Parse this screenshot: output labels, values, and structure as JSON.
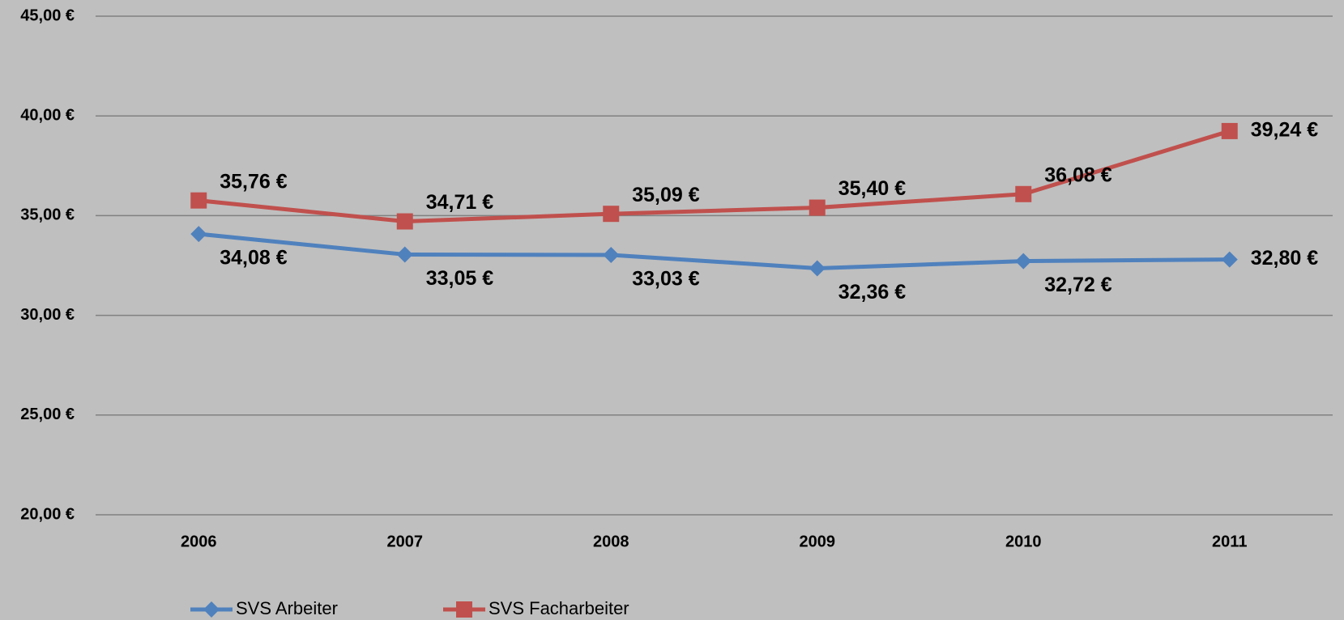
{
  "chart_data": {
    "type": "line",
    "categories": [
      "2006",
      "2007",
      "2008",
      "2009",
      "2010",
      "2011"
    ],
    "series": [
      {
        "name": "SVS Arbeiter",
        "color": "#4f81bd",
        "marker": "diamond",
        "values": [
          34.08,
          33.05,
          33.03,
          32.36,
          32.72,
          32.8
        ],
        "value_labels": [
          "34,08 €",
          "33,05 €",
          "33,03 €",
          "32,36 €",
          "32,72 €",
          "32,80 €"
        ]
      },
      {
        "name": "SVS Facharbeiter",
        "color": "#c0504d",
        "marker": "square",
        "values": [
          35.76,
          34.71,
          35.09,
          35.4,
          36.08,
          39.24
        ],
        "value_labels": [
          "35,76 €",
          "34,71 €",
          "35,09 €",
          "35,40 €",
          "36,08 €",
          "39,24 €"
        ]
      }
    ],
    "ylim": [
      20,
      45
    ],
    "yticks": [
      {
        "value": 20,
        "label": "20,00 €"
      },
      {
        "value": 25,
        "label": "25,00 €"
      },
      {
        "value": 30,
        "label": "30,00 €"
      },
      {
        "value": 35,
        "label": "35,00 €"
      },
      {
        "value": 40,
        "label": "40,00 €"
      },
      {
        "value": 45,
        "label": "45,00 €"
      }
    ],
    "grid": true,
    "legend": "bottom"
  }
}
